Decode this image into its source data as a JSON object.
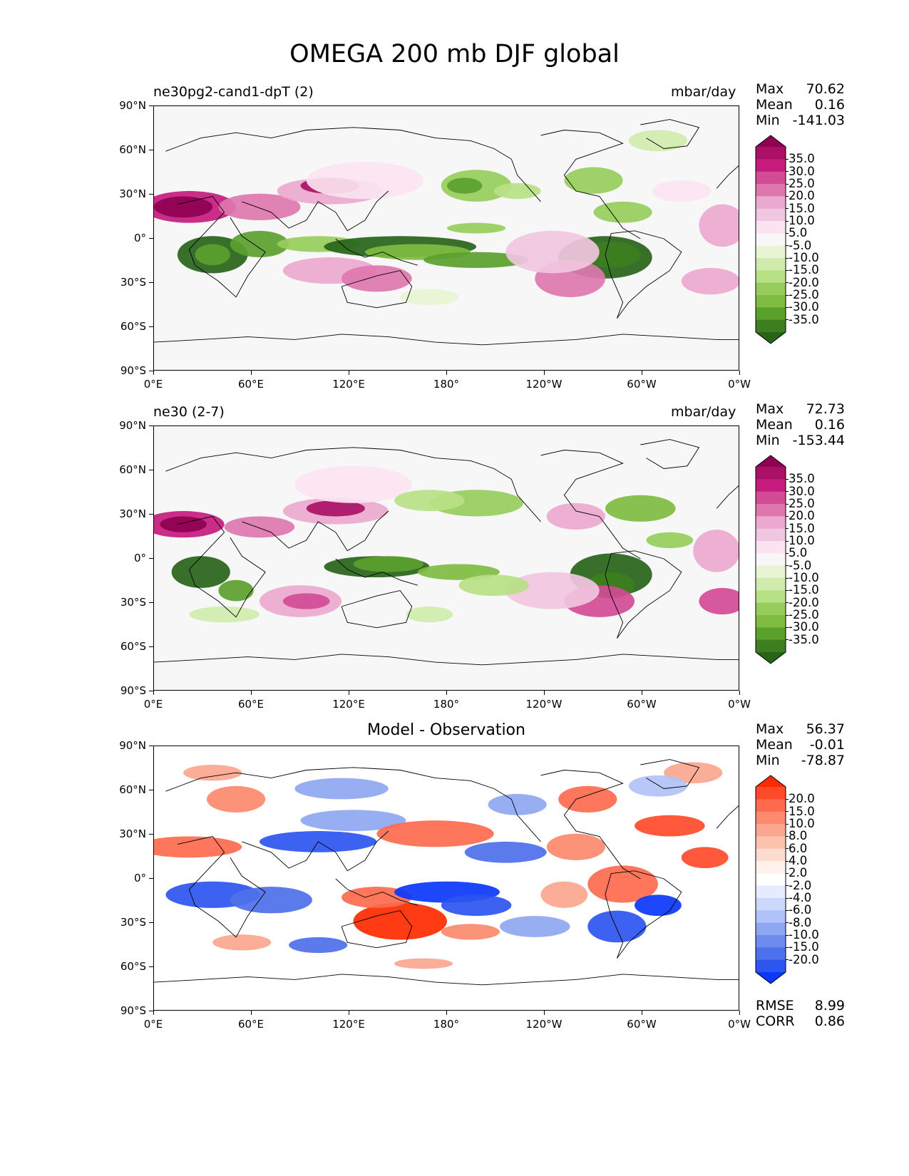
{
  "figure_title": "OMEGA 200 mb DJF global",
  "x_ticks": [
    "0°E",
    "60°E",
    "120°E",
    "180°",
    "120°W",
    "60°W",
    "0°W"
  ],
  "y_ticks": [
    "90°N",
    "60°N",
    "30°N",
    "0°",
    "30°S",
    "60°S",
    "90°S"
  ],
  "panels": [
    {
      "title_left": "ne30pg2-cand1-dpT (2)",
      "title_right": "mbar/day",
      "title_center": "",
      "stats": {
        "max_label": "Max",
        "max": "70.62",
        "mean_label": "Mean",
        "mean": "0.16",
        "min_label": "Min",
        "min": "-141.03"
      },
      "colorbar": {
        "labels": [
          "35.0",
          "30.0",
          "25.0",
          "20.0",
          "15.0",
          "10.0",
          "5.0",
          "-5.0",
          "-10.0",
          "-15.0",
          "-20.0",
          "-25.0",
          "-30.0",
          "-35.0"
        ],
        "colors": [
          "#8e0152",
          "#aa1166",
          "#c51b7d",
          "#d24b95",
          "#de77ae",
          "#eba9cf",
          "#f1c6e0",
          "#fbe4f0",
          "#f7f7f7",
          "#e8f4d2",
          "#d0ebac",
          "#b8e186",
          "#97cd5c",
          "#7fbc41",
          "#5aa02d",
          "#3d7f1e",
          "#276419"
        ]
      }
    },
    {
      "title_left": "ne30 (2-7)",
      "title_right": "mbar/day",
      "title_center": "",
      "stats": {
        "max_label": "Max",
        "max": "72.73",
        "mean_label": "Mean",
        "mean": "0.16",
        "min_label": "Min",
        "min": "-153.44"
      },
      "colorbar": {
        "labels": [
          "35.0",
          "30.0",
          "25.0",
          "20.0",
          "15.0",
          "10.0",
          "5.0",
          "-5.0",
          "-10.0",
          "-15.0",
          "-20.0",
          "-25.0",
          "-30.0",
          "-35.0"
        ],
        "colors": [
          "#8e0152",
          "#aa1166",
          "#c51b7d",
          "#d24b95",
          "#de77ae",
          "#eba9cf",
          "#f1c6e0",
          "#fbe4f0",
          "#f7f7f7",
          "#e8f4d2",
          "#d0ebac",
          "#b8e186",
          "#97cd5c",
          "#7fbc41",
          "#5aa02d",
          "#3d7f1e",
          "#276419"
        ]
      }
    },
    {
      "title_left": "",
      "title_right": "",
      "title_center": "Model - Observation",
      "stats": {
        "max_label": "Max",
        "max": "56.37",
        "mean_label": "Mean",
        "mean": "-0.01",
        "min_label": "Min",
        "min": "-78.87"
      },
      "colorbar": {
        "labels": [
          "20.0",
          "15.0",
          "10.0",
          "8.0",
          "6.0",
          "4.0",
          "2.0",
          "-2.0",
          "-4.0",
          "-6.0",
          "-8.0",
          "-10.0",
          "-15.0",
          "-20.0"
        ],
        "colors": [
          "#ff2a00",
          "#ff4a2a",
          "#fe6a4e",
          "#fc8a6e",
          "#fba68e",
          "#fcc2ae",
          "#fddcd0",
          "#fff2ec",
          "#ffffff",
          "#e6ecff",
          "#ccd8fb",
          "#b0c2f7",
          "#8ea7f2",
          "#6d8cee",
          "#4d70ec",
          "#2d55f0",
          "#0b36fb"
        ]
      },
      "rmse_label": "RMSE",
      "rmse": "8.99",
      "corr_label": "CORR",
      "corr": "0.86"
    }
  ]
}
